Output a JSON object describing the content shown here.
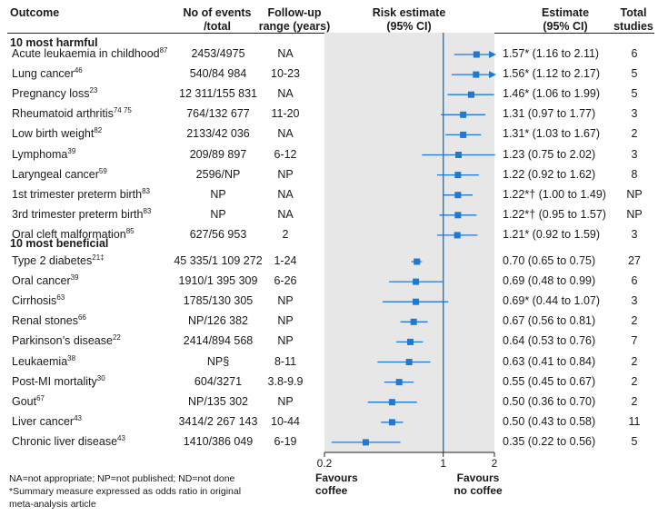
{
  "headers": {
    "outcome": "Outcome",
    "events_1": "No of events",
    "events_2": "/total",
    "followup_1": "Follow-up",
    "followup_2": "range (years)",
    "risk_1": "Risk estimate",
    "risk_2": "(95% CI)",
    "estimate_1": "Estimate",
    "estimate_2": "(95% CI)",
    "total_1": "Total",
    "total_2": "studies"
  },
  "sections": {
    "harmful": "10 most harmful",
    "beneficial": "10 most beneficial"
  },
  "footnotes": {
    "line1": "NA=not appropriate; NP=not published; ND=not done",
    "line2": "*Summary measure expressed as odds ratio in original",
    "line3": "meta-analysis article"
  },
  "favours": {
    "left_1": "Favours",
    "left_2": "coffee",
    "right_1": "Favours",
    "right_2": "no coffee"
  },
  "chart_data": {
    "type": "forest",
    "x_scale": "log",
    "xlim": [
      0.2,
      2
    ],
    "ticks": [
      "0.2",
      "1",
      "2"
    ],
    "tick_values": [
      0.2,
      1,
      2
    ],
    "reference_line": 1,
    "marker_color": "#1f78d1",
    "rows": [
      {
        "outcome": "Acute leukaemia in childhood",
        "ref": "87",
        "events": "2453/4975",
        "followup": "NA",
        "estimate": 1.57,
        "lo": 1.16,
        "hi": 2.11,
        "label": "1.57* (1.16 to 2.11)",
        "studies": "6",
        "arrow": true,
        "group": "harmful"
      },
      {
        "outcome": "Lung cancer",
        "ref": "46",
        "events": "540/84 984",
        "followup": "10-23",
        "estimate": 1.56,
        "lo": 1.12,
        "hi": 2.17,
        "label": "1.56* (1.12 to 2.17)",
        "studies": "5",
        "arrow": true,
        "group": "harmful"
      },
      {
        "outcome": "Pregnancy loss",
        "ref": "23",
        "events": "12 311/155 831",
        "followup": "NA",
        "estimate": 1.46,
        "lo": 1.06,
        "hi": 1.99,
        "label": "1.46* (1.06 to 1.99)",
        "studies": "5",
        "arrow": false,
        "group": "harmful"
      },
      {
        "outcome": "Rheumatoid arthritis",
        "ref": "74 75",
        "events": "764/132 677",
        "followup": "11-20",
        "estimate": 1.31,
        "lo": 0.97,
        "hi": 1.77,
        "label": "1.31 (0.97 to 1.77)",
        "studies": "3",
        "arrow": false,
        "group": "harmful"
      },
      {
        "outcome": "Low birth weight",
        "ref": "82",
        "events": "2133/42 036",
        "followup": "NA",
        "estimate": 1.31,
        "lo": 1.03,
        "hi": 1.67,
        "label": "1.31* (1.03 to 1.67)",
        "studies": "2",
        "arrow": false,
        "group": "harmful"
      },
      {
        "outcome": "Lymphoma",
        "ref": "39",
        "events": "209/89 897",
        "followup": "6-12",
        "estimate": 1.23,
        "lo": 0.75,
        "hi": 2.02,
        "label": "1.23 (0.75 to 2.02)",
        "studies": "3",
        "arrow": false,
        "group": "harmful"
      },
      {
        "outcome": "Laryngeal cancer",
        "ref": "59",
        "events": "2596/NP",
        "followup": "NP",
        "estimate": 1.22,
        "lo": 0.92,
        "hi": 1.62,
        "label": "1.22 (0.92 to 1.62)",
        "studies": "8",
        "arrow": false,
        "group": "harmful"
      },
      {
        "outcome": "1st trimester preterm birth",
        "ref": "83",
        "events": "NP",
        "followup": "NA",
        "estimate": 1.22,
        "lo": 1.0,
        "hi": 1.49,
        "label": "1.22*† (1.00 to 1.49)",
        "studies": "NP",
        "arrow": false,
        "group": "harmful"
      },
      {
        "outcome": "3rd trimester preterm birth",
        "ref": "83",
        "events": "NP",
        "followup": "NA",
        "estimate": 1.22,
        "lo": 0.95,
        "hi": 1.57,
        "label": "1.22*† (0.95 to 1.57)",
        "studies": "NP",
        "arrow": false,
        "group": "harmful"
      },
      {
        "outcome": "Oral cleft malformation",
        "ref": "85",
        "events": "627/56 953",
        "followup": "2",
        "estimate": 1.21,
        "lo": 0.92,
        "hi": 1.59,
        "label": "1.21* (0.92 to 1.59)",
        "studies": "3",
        "arrow": false,
        "group": "harmful"
      },
      {
        "outcome": "Type 2 diabetes",
        "ref": "21‡",
        "events": "45 335/1 109 272",
        "followup": "1-24",
        "estimate": 0.7,
        "lo": 0.65,
        "hi": 0.75,
        "label": "0.70 (0.65 to 0.75)",
        "studies": "27",
        "arrow": false,
        "group": "beneficial"
      },
      {
        "outcome": "Oral cancer",
        "ref": "39",
        "events": "1910/1 395 309",
        "followup": "6-26",
        "estimate": 0.69,
        "lo": 0.48,
        "hi": 0.99,
        "label": "0.69 (0.48 to 0.99)",
        "studies": "6",
        "arrow": false,
        "group": "beneficial"
      },
      {
        "outcome": "Cirrhosis",
        "ref": "63",
        "events": "1785/130 305",
        "followup": "NP",
        "estimate": 0.69,
        "lo": 0.44,
        "hi": 1.07,
        "label": "0.69* (0.44 to 1.07)",
        "studies": "3",
        "arrow": false,
        "group": "beneficial"
      },
      {
        "outcome": "Renal stones",
        "ref": "66",
        "events": "NP/126 382",
        "followup": "NP",
        "estimate": 0.67,
        "lo": 0.56,
        "hi": 0.81,
        "label": "0.67 (0.56 to 0.81)",
        "studies": "2",
        "arrow": false,
        "group": "beneficial"
      },
      {
        "outcome": "Parkinson’s disease",
        "ref": "22",
        "events": "2414/894 568",
        "followup": "NP",
        "estimate": 0.64,
        "lo": 0.53,
        "hi": 0.76,
        "label": "0.64 (0.53 to 0.76)",
        "studies": "7",
        "arrow": false,
        "group": "beneficial"
      },
      {
        "outcome": "Leukaemia",
        "ref": "38",
        "events": "NP§",
        "followup": "8-11",
        "estimate": 0.63,
        "lo": 0.41,
        "hi": 0.84,
        "label": "0.63 (0.41 to 0.84)",
        "studies": "2",
        "arrow": false,
        "group": "beneficial"
      },
      {
        "outcome": "Post-MI mortality",
        "ref": "30",
        "events": "604/3271",
        "followup": "3.8-9.9",
        "estimate": 0.55,
        "lo": 0.45,
        "hi": 0.67,
        "label": "0.55 (0.45 to 0.67)",
        "studies": "2",
        "arrow": false,
        "group": "beneficial"
      },
      {
        "outcome": "Gout",
        "ref": "67",
        "events": "NP/135 302",
        "followup": "NP",
        "estimate": 0.5,
        "lo": 0.36,
        "hi": 0.7,
        "label": "0.50 (0.36 to 0.70)",
        "studies": "2",
        "arrow": false,
        "group": "beneficial"
      },
      {
        "outcome": "Liver cancer",
        "ref": "43",
        "events": "3414/2 267 143",
        "followup": "10-44",
        "estimate": 0.5,
        "lo": 0.43,
        "hi": 0.58,
        "label": "0.50 (0.43 to 0.58)",
        "studies": "11",
        "arrow": false,
        "group": "beneficial"
      },
      {
        "outcome": "Chronic liver disease",
        "ref": "43",
        "events": "1410/386 049",
        "followup": "6-19",
        "estimate": 0.35,
        "lo": 0.22,
        "hi": 0.56,
        "label": "0.35 (0.22 to 0.56)",
        "studies": "5",
        "arrow": false,
        "group": "beneficial"
      }
    ]
  }
}
